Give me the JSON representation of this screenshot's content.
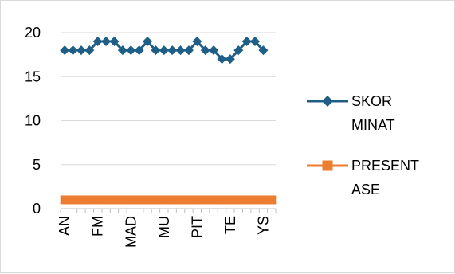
{
  "chart_data": {
    "type": "line",
    "title": "",
    "xlabel": "",
    "ylabel": "",
    "ylim": [
      0,
      20
    ],
    "y_ticks": [
      "0",
      "5",
      "10",
      "15",
      "20"
    ],
    "x_tick_labels": [
      "AN",
      "FM",
      "MAD",
      "MU",
      "PIT",
      "TE",
      "YS"
    ],
    "category_count": 26,
    "labeled_category_indices": [
      0,
      4,
      8,
      12,
      16,
      20,
      24
    ],
    "grid": "horizontal",
    "legend_position": "right",
    "series": [
      {
        "legend_lines": [
          "SKOR",
          "MINAT"
        ],
        "color": "#1f5f87",
        "marker": "diamond",
        "values": [
          18,
          18,
          18,
          18,
          19,
          19,
          19,
          18,
          18,
          18,
          19,
          18,
          18,
          18,
          18,
          18,
          19,
          18,
          18,
          17,
          17,
          18,
          19,
          19,
          18,
          null
        ]
      },
      {
        "legend_lines": [
          "PRESENT",
          "ASE"
        ],
        "color": "#ed7d31",
        "marker": "square",
        "values": [
          1,
          1,
          1,
          1,
          1,
          1,
          1,
          1,
          1,
          1,
          1,
          1,
          1,
          1,
          1,
          1,
          1,
          1,
          1,
          1,
          1,
          1,
          1,
          1,
          1,
          1
        ]
      }
    ]
  }
}
